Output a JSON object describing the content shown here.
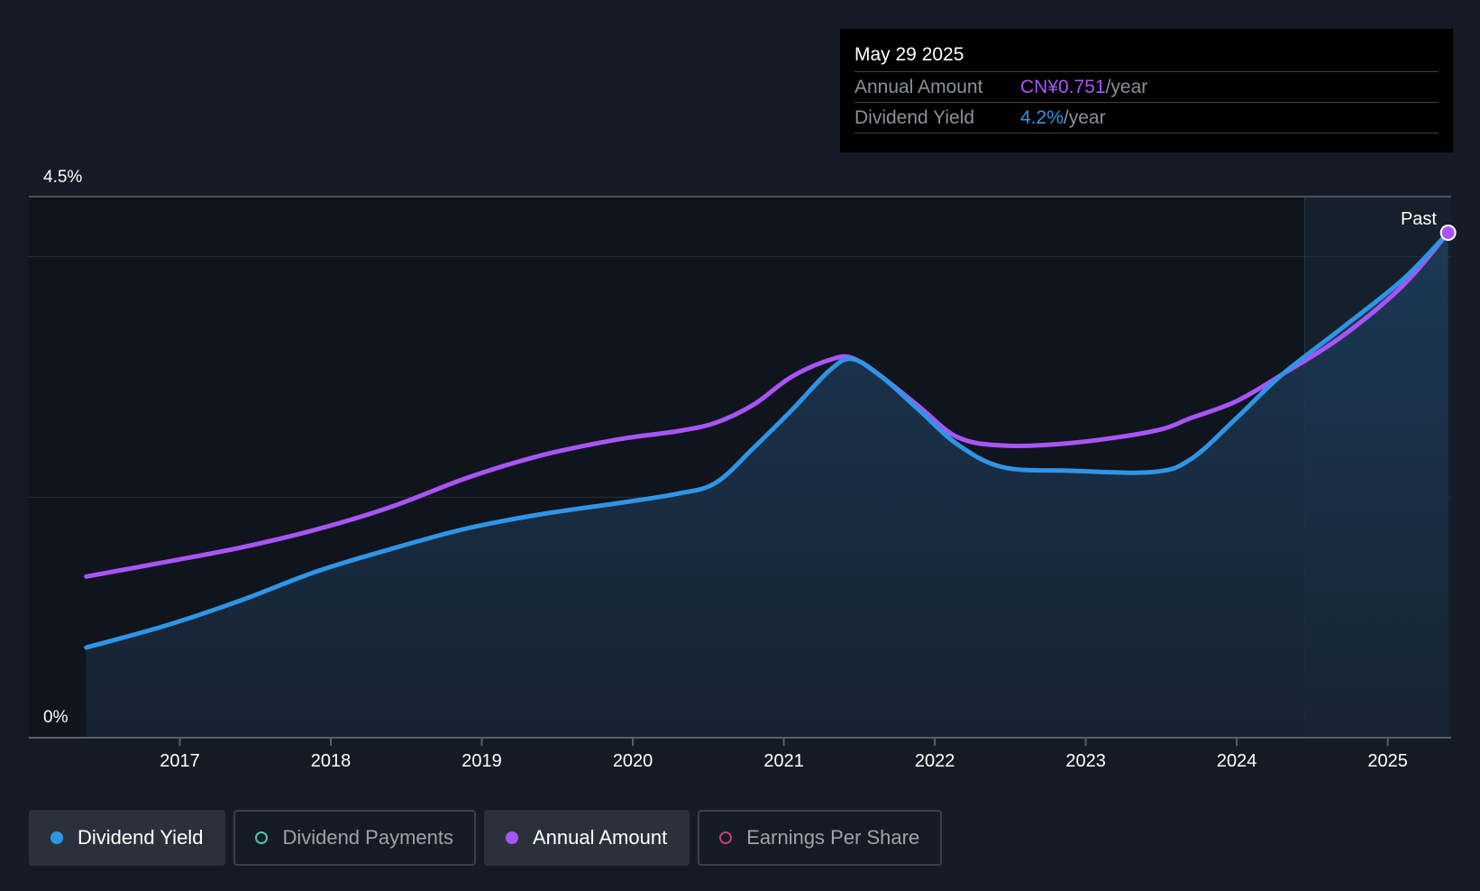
{
  "tooltip": {
    "date": "May 29 2025",
    "rows": [
      {
        "label": "Annual Amount",
        "value": "CN¥0.751",
        "unit": "/year",
        "color": "#a855f7"
      },
      {
        "label": "Dividend Yield",
        "value": "4.2%",
        "unit": "/year",
        "color": "#2f95e6"
      }
    ]
  },
  "legend": [
    {
      "label": "Dividend Yield",
      "color": "#2f95e6",
      "active": true
    },
    {
      "label": "Dividend Payments",
      "color": "#4fc3b6",
      "active": false
    },
    {
      "label": "Annual Amount",
      "color": "#a855f7",
      "active": true
    },
    {
      "label": "Earnings Per Share",
      "color": "#c2416d",
      "active": false
    }
  ],
  "chart_data": {
    "type": "line",
    "y_top_label": "4.5%",
    "y_bottom_label": "0%",
    "ylim": [
      0,
      4.5
    ],
    "xlim": [
      2016.0,
      2025.42
    ],
    "past_label": "Past",
    "past_region_start": 2024.45,
    "x_ticks": [
      2017,
      2018,
      2019,
      2020,
      2021,
      2022,
      2023,
      2024,
      2025
    ],
    "colors": {
      "yield": "#2f95e6",
      "amount": "#a855f7"
    },
    "series": [
      {
        "name": "Dividend Yield",
        "key": "yield",
        "x": [
          2016.38,
          2016.9,
          2017.4,
          2017.9,
          2018.4,
          2018.9,
          2019.4,
          2019.9,
          2020.3,
          2020.55,
          2020.8,
          2021.05,
          2021.3,
          2021.45,
          2021.65,
          2021.9,
          2022.15,
          2022.45,
          2022.9,
          2023.45,
          2023.7,
          2024.0,
          2024.3,
          2024.7,
          2025.1,
          2025.4
        ],
        "values": [
          0.75,
          0.93,
          1.14,
          1.38,
          1.57,
          1.74,
          1.86,
          1.95,
          2.03,
          2.12,
          2.41,
          2.72,
          3.05,
          3.15,
          3.0,
          2.72,
          2.44,
          2.25,
          2.22,
          2.21,
          2.32,
          2.66,
          3.02,
          3.41,
          3.81,
          4.2
        ]
      },
      {
        "name": "Annual Amount",
        "key": "amount",
        "x": [
          2016.38,
          2016.9,
          2017.4,
          2017.9,
          2018.4,
          2018.9,
          2019.4,
          2019.9,
          2020.3,
          2020.55,
          2020.8,
          2021.05,
          2021.3,
          2021.45,
          2021.65,
          2021.9,
          2022.15,
          2022.45,
          2022.9,
          2023.45,
          2023.7,
          2024.0,
          2024.3,
          2024.7,
          2025.1,
          2025.4
        ],
        "values": [
          1.34,
          1.46,
          1.58,
          1.73,
          1.92,
          2.16,
          2.35,
          2.48,
          2.55,
          2.62,
          2.77,
          3.0,
          3.14,
          3.16,
          3.0,
          2.75,
          2.5,
          2.43,
          2.45,
          2.55,
          2.66,
          2.8,
          3.02,
          3.34,
          3.76,
          4.2
        ]
      }
    ]
  }
}
